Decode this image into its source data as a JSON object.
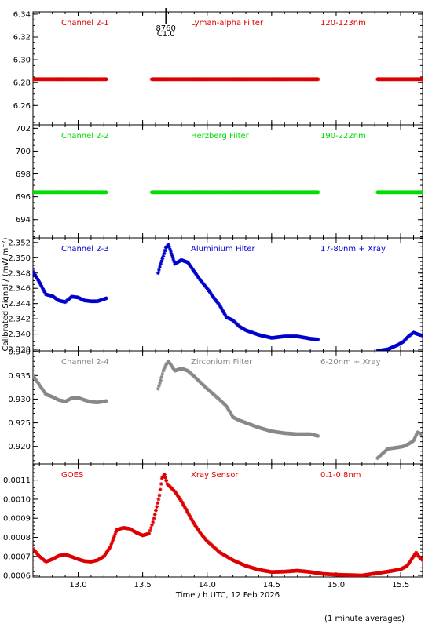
{
  "figure": {
    "xlabel": "Time / h UTC, 12 Feb 2026",
    "ylabel": "Calibrated Signal / (mW m⁻²)",
    "footnote": "(1 minute averages)",
    "marker_label_line1": "8760",
    "marker_label_line2": "C1.0"
  },
  "chart_data": [
    {
      "type": "scatter",
      "name_label": "Channel 2-1",
      "filter_label": "Lyman-alpha Filter",
      "band_label": "120-123nm",
      "color": "#dd0000",
      "xlim": [
        12.65,
        15.67
      ],
      "ylim": [
        6.243,
        6.342
      ],
      "yticks": [
        6.26,
        6.28,
        6.3,
        6.32,
        6.34
      ],
      "ytick_labels": [
        "6.26",
        "6.28",
        "6.30",
        "6.32",
        "6.34"
      ],
      "tick_minor": 0.005,
      "x": [
        12.65,
        13.22,
        13.57,
        14.86,
        15.32,
        15.67
      ],
      "y": [
        6.283,
        6.283,
        6.283,
        6.283,
        6.283,
        6.283
      ],
      "gaps_after": [
        1,
        3
      ]
    },
    {
      "type": "scatter",
      "name_label": "Channel 2-2",
      "filter_label": "Herzberg Filter",
      "band_label": "190-222nm",
      "color": "#00dd00",
      "xlim": [
        12.65,
        15.67
      ],
      "ylim": [
        692.4,
        702.3
      ],
      "yticks": [
        694,
        696,
        698,
        700,
        702
      ],
      "ytick_labels": [
        "694",
        "696",
        "698",
        "700",
        "702"
      ],
      "tick_minor": 0.5,
      "x": [
        12.65,
        13.22,
        13.57,
        14.86,
        15.32,
        15.67
      ],
      "y": [
        696.4,
        696.4,
        696.4,
        696.4,
        696.4,
        696.4
      ],
      "gaps_after": [
        1,
        3
      ]
    },
    {
      "type": "scatter",
      "name_label": "Channel 2-3",
      "filter_label": "Aluminium Filter",
      "band_label": "17-80nm + Xray",
      "color": "#0000cc",
      "xlim": [
        12.65,
        15.67
      ],
      "ylim": [
        2.3378,
        2.3526
      ],
      "yticks": [
        2.338,
        2.34,
        2.342,
        2.344,
        2.346,
        2.348,
        2.35,
        2.352
      ],
      "ytick_labels": [
        "2.338",
        "2.340",
        "2.342",
        "2.344",
        "2.346",
        "2.348",
        "2.350",
        "2.352"
      ],
      "tick_minor": 0.0005,
      "x": [
        12.65,
        12.7,
        12.75,
        12.8,
        12.85,
        12.9,
        12.95,
        13.0,
        13.05,
        13.1,
        13.15,
        13.22,
        13.62,
        13.64,
        13.66,
        13.68,
        13.7,
        13.75,
        13.8,
        13.85,
        13.9,
        13.95,
        14.0,
        14.05,
        14.1,
        14.15,
        14.2,
        14.25,
        14.3,
        14.4,
        14.5,
        14.6,
        14.7,
        14.8,
        14.86,
        15.32,
        15.4,
        15.48,
        15.52,
        15.56,
        15.6,
        15.63,
        15.67
      ],
      "y": [
        2.3482,
        2.3468,
        2.3452,
        2.345,
        2.3444,
        2.3442,
        2.3449,
        2.3448,
        2.3444,
        2.3443,
        2.3443,
        2.3447,
        2.348,
        2.3492,
        2.3502,
        2.3513,
        2.3517,
        2.3492,
        2.3497,
        2.3494,
        2.3482,
        2.347,
        2.346,
        2.3448,
        2.3437,
        2.3422,
        2.3418,
        2.341,
        2.3405,
        2.3399,
        2.3395,
        2.3397,
        2.3397,
        2.3394,
        2.3393,
        2.3378,
        2.338,
        2.3386,
        2.339,
        2.3397,
        2.3402,
        2.34,
        2.3398
      ],
      "gaps_after": [
        11,
        34
      ]
    },
    {
      "type": "scatter",
      "name_label": "Channel 2-4",
      "filter_label": "Zirconium Filter",
      "band_label": "6-20nm + Xray",
      "color": "#888888",
      "xlim": [
        12.65,
        15.67
      ],
      "ylim": [
        0.9163,
        0.9402
      ],
      "yticks": [
        0.92,
        0.925,
        0.93,
        0.935,
        0.94
      ],
      "ytick_labels": [
        "0.920",
        "0.925",
        "0.930",
        "0.935",
        "0.940"
      ],
      "tick_minor": 0.001,
      "x": [
        12.65,
        12.7,
        12.75,
        12.8,
        12.85,
        12.9,
        12.95,
        13.0,
        13.05,
        13.1,
        13.15,
        13.22,
        13.62,
        13.64,
        13.66,
        13.68,
        13.7,
        13.75,
        13.8,
        13.85,
        13.9,
        13.95,
        14.0,
        14.05,
        14.1,
        14.15,
        14.2,
        14.25,
        14.3,
        14.4,
        14.5,
        14.6,
        14.7,
        14.8,
        14.86,
        15.32,
        15.4,
        15.48,
        15.52,
        15.56,
        15.6,
        15.63,
        15.67
      ],
      "y": [
        0.935,
        0.933,
        0.931,
        0.9305,
        0.9298,
        0.9295,
        0.9302,
        0.9303,
        0.9298,
        0.9294,
        0.9293,
        0.9296,
        0.9322,
        0.934,
        0.936,
        0.9372,
        0.938,
        0.936,
        0.9365,
        0.936,
        0.9348,
        0.9335,
        0.9322,
        0.931,
        0.9298,
        0.9285,
        0.9262,
        0.9255,
        0.925,
        0.924,
        0.9232,
        0.9228,
        0.9226,
        0.9226,
        0.9222,
        0.9175,
        0.9195,
        0.9198,
        0.92,
        0.9205,
        0.9212,
        0.923,
        0.9225
      ],
      "gaps_after": [
        11,
        34
      ]
    },
    {
      "type": "scatter",
      "name_label": "GOES",
      "filter_label": "Xray Sensor",
      "band_label": "0.1-0.8nm",
      "color": "#dd0000",
      "xlim": [
        12.65,
        15.67
      ],
      "ylim": [
        0.000592,
        0.001185
      ],
      "yticks": [
        0.0006,
        0.0007,
        0.0008,
        0.0009,
        0.001,
        0.0011
      ],
      "ytick_labels": [
        "0.0006",
        "0.0007",
        "0.0008",
        "0.0009",
        "0.0010",
        "0.0011"
      ],
      "tick_minor": 2e-05,
      "x": [
        12.65,
        12.7,
        12.75,
        12.8,
        12.85,
        12.9,
        12.95,
        13.0,
        13.05,
        13.1,
        13.15,
        13.2,
        13.25,
        13.3,
        13.35,
        13.4,
        13.45,
        13.5,
        13.55,
        13.58,
        13.61,
        13.63,
        13.65,
        13.67,
        13.69,
        13.72,
        13.75,
        13.8,
        13.85,
        13.9,
        13.95,
        14.0,
        14.1,
        14.2,
        14.3,
        14.4,
        14.5,
        14.6,
        14.7,
        14.8,
        14.9,
        15.0,
        15.1,
        15.2,
        15.3,
        15.4,
        15.5,
        15.55,
        15.6,
        15.62,
        15.64,
        15.67
      ],
      "y": [
        0.00074,
        0.0007,
        0.000672,
        0.000685,
        0.000703,
        0.00071,
        0.000698,
        0.000685,
        0.000675,
        0.000672,
        0.00068,
        0.0007,
        0.00075,
        0.00084,
        0.00085,
        0.000845,
        0.000825,
        0.00081,
        0.00082,
        0.00088,
        0.00096,
        0.00102,
        0.00111,
        0.00113,
        0.00108,
        0.00106,
        0.00104,
        0.00099,
        0.00093,
        0.00087,
        0.00082,
        0.00078,
        0.00072,
        0.00068,
        0.00065,
        0.00063,
        0.000618,
        0.00062,
        0.000625,
        0.000618,
        0.000608,
        0.000604,
        0.000602,
        0.0006,
        0.00061,
        0.00062,
        0.000632,
        0.00065,
        0.0007,
        0.00072,
        0.0007,
        0.00068
      ],
      "gaps_after": []
    }
  ],
  "x_axis": {
    "ticks": [
      13.0,
      13.5,
      14.0,
      14.5,
      15.0,
      15.5
    ],
    "tick_labels": [
      "13.0",
      "13.5",
      "14.0",
      "14.5",
      "15.0",
      "15.5"
    ],
    "minor_step": 0.1,
    "marker_x": 13.68
  }
}
